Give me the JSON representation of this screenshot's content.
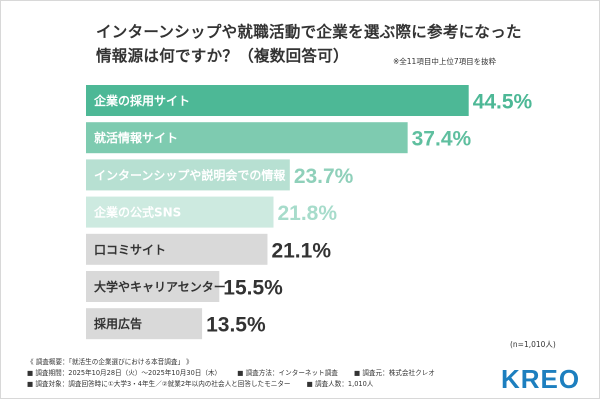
{
  "title_line1": "インターンシップや就職活動で企業を選ぶ際に参考になった",
  "title_line2": "情報源は何ですか？（複数回答可）",
  "note": "※全11項目中上位7項目を抜粋",
  "chart_data": {
    "type": "bar",
    "orientation": "horizontal",
    "categories": [
      "企業の採用サイト",
      "就活情報サイト",
      "インターンシップや説明会での情報",
      "企業の公式SNS",
      "口コミサイト",
      "大学やキャリアセンター",
      "採用広告"
    ],
    "values": [
      44.5,
      37.4,
      23.7,
      21.8,
      21.1,
      15.5,
      13.5
    ],
    "value_labels": [
      "44.5%",
      "37.4%",
      "23.7%",
      "21.8%",
      "21.1%",
      "15.5%",
      "13.5%"
    ],
    "bar_colors": [
      "#4db896",
      "#7ecbb0",
      "#b7e0d2",
      "#cdeae0",
      "#d9d9d9",
      "#d9d9d9",
      "#d9d9d9"
    ],
    "label_colors": [
      "#ffffff",
      "#ffffff",
      "#ffffff",
      "#ffffff",
      "#333333",
      "#333333",
      "#333333"
    ],
    "value_colors": [
      "#4db896",
      "#5fbf9f",
      "#8fd0ba",
      "#a7dccb",
      "#333333",
      "#333333",
      "#333333"
    ],
    "xlim": [
      0,
      50
    ]
  },
  "n_label": "(n=1,010人)",
  "footer": {
    "line1": "《 調査概要：「就活生の企業選びにおける本音調査」 》",
    "period": "■ 調査期間：2025年10月28日（火）〜2025年10月30日（木）",
    "method": "■ 調査方法：インターネット調査",
    "source": "■ 調査元：株式会社クレオ",
    "target": "■ 調査対象：調査回答時に①大学3・4年生／②就業2年以内の社会人と回答したモニター",
    "count": "■ 調査人数：1,010人"
  },
  "logo": "KREO"
}
